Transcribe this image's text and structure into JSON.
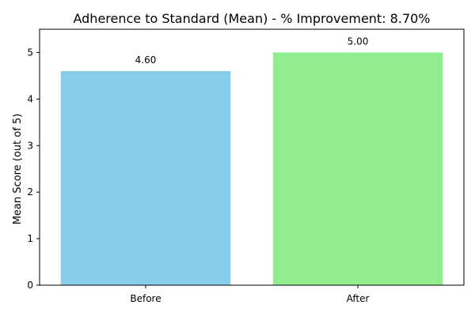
{
  "chart_data": {
    "type": "bar",
    "title": "Adherence to Standard (Mean) - % Improvement: 8.70%",
    "xlabel": "",
    "ylabel": "Mean Score (out of 5)",
    "categories": [
      "Before",
      "After"
    ],
    "values": [
      4.6,
      5.0
    ],
    "data_labels": [
      "4.60",
      "5.00"
    ],
    "colors": [
      "#87ceeb",
      "#90ee90"
    ],
    "ylim": [
      0,
      5.5
    ],
    "yticks": [
      0,
      1,
      2,
      3,
      4,
      5
    ],
    "ytick_labels": [
      "0",
      "1",
      "2",
      "3",
      "4",
      "5"
    ],
    "grid": false,
    "legend": "none"
  }
}
